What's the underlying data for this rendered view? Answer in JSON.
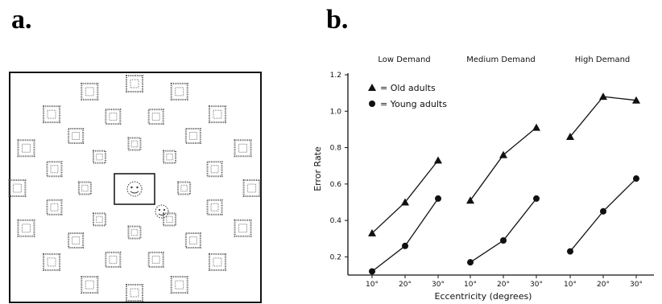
{
  "panels": {
    "a": {
      "letter": "a."
    },
    "b": {
      "letter": "b."
    }
  },
  "legend": {
    "old_label": "= Old adults",
    "young_label": "= Young adults"
  },
  "chart_data": {
    "type": "line",
    "ylabel": "Error Rate",
    "xlabel": "Eccentricity  (degrees)",
    "ylim": [
      0.1,
      1.2
    ],
    "yticks": [
      "0.2",
      "0.4",
      "0.6",
      "0.8",
      "1.0",
      "1.2"
    ],
    "ytick_values": [
      0.2,
      0.4,
      0.6,
      0.8,
      1.0,
      1.2
    ],
    "grid": false,
    "legend_position": "top-left",
    "groups": [
      {
        "title": "Low Demand",
        "x": [
          "10°",
          "20°",
          "30°"
        ],
        "series": [
          {
            "name": "Old adults",
            "marker": "triangle",
            "values": [
              0.33,
              0.5,
              0.73
            ]
          },
          {
            "name": "Young adults",
            "marker": "circle",
            "values": [
              0.12,
              0.26,
              0.52
            ]
          }
        ]
      },
      {
        "title": "Medium Demand",
        "x": [
          "10°",
          "20°",
          "30°"
        ],
        "series": [
          {
            "name": "Old adults",
            "marker": "triangle",
            "values": [
              0.51,
              0.76,
              0.91
            ]
          },
          {
            "name": "Young adults",
            "marker": "circle",
            "values": [
              0.17,
              0.29,
              0.52
            ]
          }
        ]
      },
      {
        "title": "High Demand",
        "x": [
          "10°",
          "20°",
          "30°"
        ],
        "series": [
          {
            "name": "Old adults",
            "marker": "triangle",
            "values": [
              0.86,
              1.08,
              1.06
            ]
          },
          {
            "name": "Young adults",
            "marker": "circle",
            "values": [
              0.23,
              0.45,
              0.63
            ]
          }
        ]
      }
    ]
  }
}
